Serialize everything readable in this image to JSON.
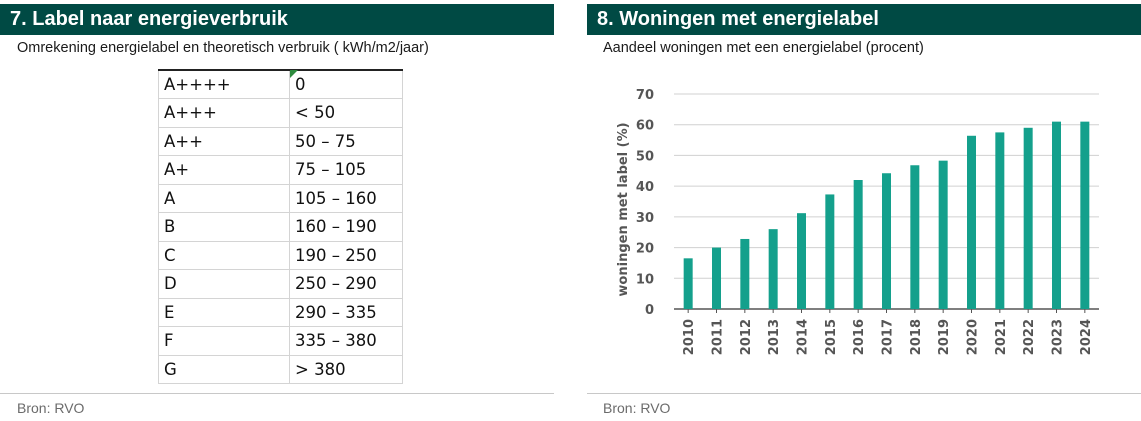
{
  "left": {
    "title": "7. Label naar energieverbruik",
    "subtitle": "Omrekening energielabel en theoretisch verbruik ( kWh/m2/jaar)",
    "source": "Bron: RVO",
    "rows": [
      {
        "label": "A++++",
        "range": "0"
      },
      {
        "label": "A+++",
        "range": "< 50"
      },
      {
        "label": "A++",
        "range": "50 – 75"
      },
      {
        "label": "A+",
        "range": "75 – 105"
      },
      {
        "label": "A",
        "range": "105 – 160"
      },
      {
        "label": "B",
        "range": "160 – 190"
      },
      {
        "label": "C",
        "range": "190 – 250"
      },
      {
        "label": "D",
        "range": "250 – 290"
      },
      {
        "label": "E",
        "range": "290 – 335"
      },
      {
        "label": "F",
        "range": "335 – 380"
      },
      {
        "label": "G",
        "range": "> 380"
      }
    ]
  },
  "right": {
    "title": "8. Woningen met energielabel",
    "subtitle": "Aandeel woningen met een energielabel (procent)",
    "source": "Bron: RVO"
  },
  "colors": {
    "header": "#004a44",
    "bar": "#14a08c",
    "grid": "#d0d0d0",
    "axis": "#555555"
  },
  "chart_data": {
    "type": "bar",
    "categories": [
      "2010",
      "2011",
      "2012",
      "2013",
      "2014",
      "2015",
      "2016",
      "2017",
      "2018",
      "2019",
      "2020",
      "2021",
      "2022",
      "2023",
      "2024"
    ],
    "values": [
      16.5,
      20,
      22.8,
      26,
      31.2,
      37.3,
      42,
      44.2,
      46.8,
      48.3,
      56.4,
      57.5,
      59,
      61,
      61
    ],
    "ylabel": "woningen met label (%)",
    "ylim": [
      0,
      70
    ],
    "yticks": [
      0,
      10,
      20,
      30,
      40,
      50,
      60,
      70
    ],
    "grid": true,
    "legend": "none"
  }
}
